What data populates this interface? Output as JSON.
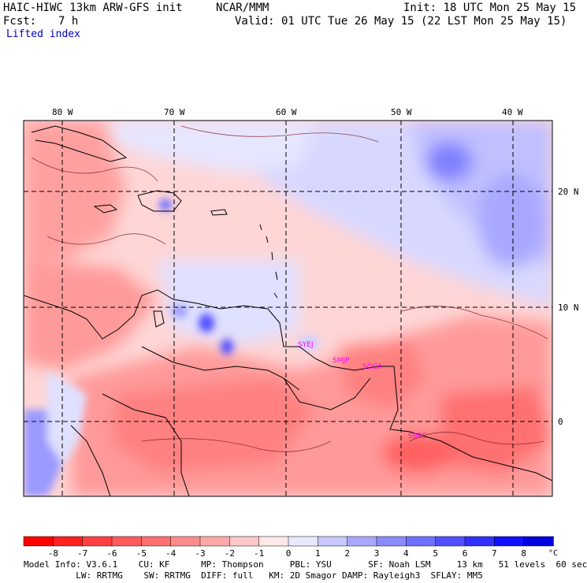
{
  "header": {
    "title": "HAIC-HIWC 13km ARW-GFS init",
    "org": "NCAR/MMM",
    "init": "Init: 18 UTC Mon 25 May 15",
    "fcst_label": "Fcst:",
    "fcst_value": "7 h",
    "valid": "Valid: 01 UTC Tue 26 May 15 (22 LST Mon 25 May 15)",
    "field": "Lifted index"
  },
  "map": {
    "lon_labels": [
      "80 W",
      "70 W",
      "60 W",
      "50 W",
      "40 W"
    ],
    "lat_labels": [
      "20 N",
      "10 N",
      "0"
    ],
    "stations": [
      "SYEJ",
      "SMJP",
      "SOCA",
      "SBBE"
    ]
  },
  "colorbar": {
    "ticks": [
      "-8",
      "-7",
      "-6",
      "-5",
      "-4",
      "-3",
      "-2",
      "-1",
      "0",
      "1",
      "2",
      "3",
      "4",
      "5",
      "6",
      "7",
      "8"
    ],
    "unit": "°C",
    "colors": [
      "#ff0000",
      "#ff2020",
      "#ff4040",
      "#ff5a5a",
      "#ff7070",
      "#ff8a8a",
      "#ffa8a8",
      "#ffc8c8",
      "#ffe8e8",
      "#e8e8ff",
      "#c8c8ff",
      "#a8a8ff",
      "#8a8aff",
      "#7070ff",
      "#5050ff",
      "#3030ff",
      "#1010ff",
      "#0000e0"
    ]
  },
  "footer": {
    "line1": "Model Info: V3.6.1    CU: KF      MP: Thompson     PBL: YSU       SF: Noah LSM     13 km   51 levels  60 sec",
    "line2": "          LW: RRTMG    SW: RRTMG  DIFF: full   KM: 2D Smagor DAMP: Rayleigh3  SFLAY: MM5"
  }
}
